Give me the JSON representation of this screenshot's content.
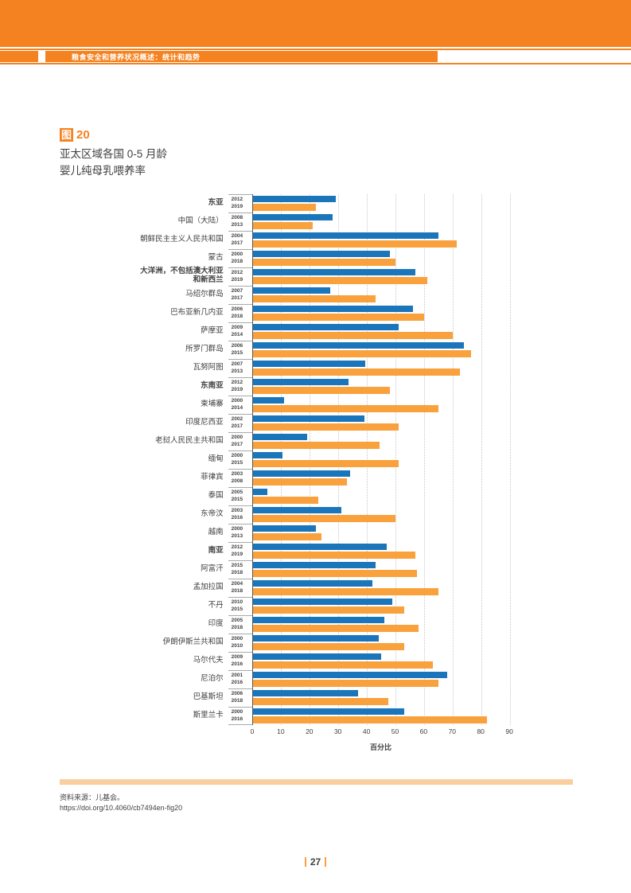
{
  "header": {
    "breadcrumb": "粮食安全和营养状况概述：统计和趋势"
  },
  "figure": {
    "badge": "图",
    "number": "20",
    "title_line1": "亚太区域各国 0-5 月龄",
    "title_line2": "婴儿纯母乳喂养率"
  },
  "colors": {
    "accent_orange": "#F58220",
    "bar_blue": "#1B75BB",
    "bar_orange": "#F9A13C",
    "divider_peach": "#F9CF9F",
    "gridline_gray": "#C7C8CA"
  },
  "chart_data": {
    "type": "bar",
    "orientation": "horizontal",
    "xlabel": "百分比",
    "xlim": [
      0,
      90
    ],
    "xticks": [
      0,
      10,
      20,
      30,
      40,
      50,
      60,
      70,
      80,
      90
    ],
    "grid": "dotted-vertical",
    "legend": "none (year shown beside each bar; first bar blue = earlier year, second bar orange = later year)",
    "groups": [
      {
        "label": "东亚",
        "bold": true,
        "bars": [
          {
            "year": "2012",
            "value": 29
          },
          {
            "year": "2019",
            "value": 22
          }
        ]
      },
      {
        "label": "中国（大陆）",
        "bold": false,
        "bars": [
          {
            "year": "2008",
            "value": 28
          },
          {
            "year": "2013",
            "value": 21
          }
        ]
      },
      {
        "label": "朝鲜民主主义人民共和国",
        "bold": false,
        "bars": [
          {
            "year": "2004",
            "value": 65
          },
          {
            "year": "2017",
            "value": 71.5
          }
        ]
      },
      {
        "label": "蒙古",
        "bold": false,
        "bars": [
          {
            "year": "2000",
            "value": 48
          },
          {
            "year": "2018",
            "value": 50
          }
        ]
      },
      {
        "label": "大洋洲，不包括澳大利亚\n和新西兰",
        "bold": true,
        "bars": [
          {
            "year": "2012",
            "value": 57
          },
          {
            "year": "2019",
            "value": 61
          }
        ]
      },
      {
        "label": "马绍尔群岛",
        "bold": false,
        "bars": [
          {
            "year": "2007",
            "value": 27
          },
          {
            "year": "2017",
            "value": 43
          }
        ]
      },
      {
        "label": "巴布亚新几内亚",
        "bold": false,
        "bars": [
          {
            "year": "2006",
            "value": 56
          },
          {
            "year": "2018",
            "value": 60
          }
        ]
      },
      {
        "label": "萨摩亚",
        "bold": false,
        "bars": [
          {
            "year": "2009",
            "value": 51
          },
          {
            "year": "2014",
            "value": 70
          }
        ]
      },
      {
        "label": "所罗门群岛",
        "bold": false,
        "bars": [
          {
            "year": "2006",
            "value": 74
          },
          {
            "year": "2015",
            "value": 76.5
          }
        ]
      },
      {
        "label": "瓦努阿图",
        "bold": false,
        "bars": [
          {
            "year": "2007",
            "value": 39.5
          },
          {
            "year": "2013",
            "value": 72.5
          }
        ]
      },
      {
        "label": "东南亚",
        "bold": true,
        "bars": [
          {
            "year": "2012",
            "value": 33.5
          },
          {
            "year": "2019",
            "value": 48
          }
        ]
      },
      {
        "label": "柬埔寨",
        "bold": false,
        "bars": [
          {
            "year": "2000",
            "value": 11
          },
          {
            "year": "2014",
            "value": 65
          }
        ]
      },
      {
        "label": "印度尼西亚",
        "bold": false,
        "bars": [
          {
            "year": "2002",
            "value": 39
          },
          {
            "year": "2017",
            "value": 51
          }
        ]
      },
      {
        "label": "老挝人民民主共和国",
        "bold": false,
        "bars": [
          {
            "year": "2000",
            "value": 19
          },
          {
            "year": "2017",
            "value": 44.5
          }
        ]
      },
      {
        "label": "缅甸",
        "bold": false,
        "bars": [
          {
            "year": "2000",
            "value": 10.5
          },
          {
            "year": "2015",
            "value": 51
          }
        ]
      },
      {
        "label": "菲律宾",
        "bold": false,
        "bars": [
          {
            "year": "2003",
            "value": 34
          },
          {
            "year": "2008",
            "value": 33
          }
        ]
      },
      {
        "label": "泰国",
        "bold": false,
        "bars": [
          {
            "year": "2005",
            "value": 5
          },
          {
            "year": "2015",
            "value": 23
          }
        ]
      },
      {
        "label": "东帝汶",
        "bold": false,
        "bars": [
          {
            "year": "2003",
            "value": 31
          },
          {
            "year": "2016",
            "value": 50
          }
        ]
      },
      {
        "label": "越南",
        "bold": false,
        "bars": [
          {
            "year": "2000",
            "value": 22
          },
          {
            "year": "2013",
            "value": 24
          }
        ]
      },
      {
        "label": "南亚",
        "bold": true,
        "bars": [
          {
            "year": "2012",
            "value": 47
          },
          {
            "year": "2019",
            "value": 57
          }
        ]
      },
      {
        "label": "阿富汗",
        "bold": false,
        "bars": [
          {
            "year": "2015",
            "value": 43
          },
          {
            "year": "2018",
            "value": 57.5
          }
        ]
      },
      {
        "label": "孟加拉国",
        "bold": false,
        "bars": [
          {
            "year": "2004",
            "value": 42
          },
          {
            "year": "2018",
            "value": 65
          }
        ]
      },
      {
        "label": "不丹",
        "bold": false,
        "bars": [
          {
            "year": "2010",
            "value": 49
          },
          {
            "year": "2015",
            "value": 53
          }
        ]
      },
      {
        "label": "印度",
        "bold": false,
        "bars": [
          {
            "year": "2005",
            "value": 46
          },
          {
            "year": "2018",
            "value": 58
          }
        ]
      },
      {
        "label": "伊朗伊斯兰共和国",
        "bold": false,
        "bars": [
          {
            "year": "2000",
            "value": 44
          },
          {
            "year": "2010",
            "value": 53
          }
        ]
      },
      {
        "label": "马尔代夫",
        "bold": false,
        "bars": [
          {
            "year": "2009",
            "value": 45
          },
          {
            "year": "2016",
            "value": 63
          }
        ]
      },
      {
        "label": "尼泊尔",
        "bold": false,
        "bars": [
          {
            "year": "2001",
            "value": 68
          },
          {
            "year": "2016",
            "value": 65
          }
        ]
      },
      {
        "label": "巴基斯坦",
        "bold": false,
        "bars": [
          {
            "year": "2006",
            "value": 37
          },
          {
            "year": "2018",
            "value": 47.5
          }
        ]
      },
      {
        "label": "斯里兰卡",
        "bold": false,
        "bars": [
          {
            "year": "2000",
            "value": 53
          },
          {
            "year": "2016",
            "value": 82
          }
        ]
      }
    ]
  },
  "source": {
    "line1": "资料来源：儿基会。",
    "doi": "https://doi.org/10.4060/cb7494en-fig20"
  },
  "page": {
    "number": "27"
  }
}
